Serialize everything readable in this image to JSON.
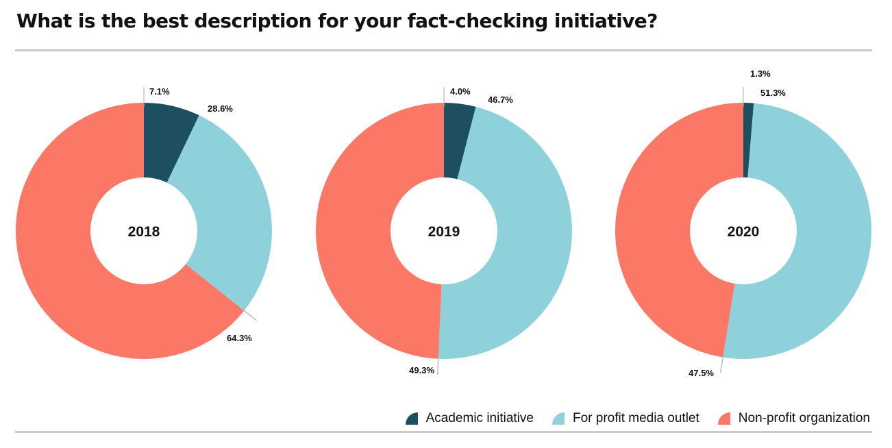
{
  "title": "What is the best description for your fact-checking initiative?",
  "colors": {
    "academic": "#1d4f60",
    "for_profit": "#8fd1db",
    "non_profit": "#fb7766"
  },
  "legend": [
    {
      "key": "academic",
      "label": "Academic initiative"
    },
    {
      "key": "for_profit",
      "label": "For profit media outlet"
    },
    {
      "key": "non_profit",
      "label": "Non-profit organization"
    }
  ],
  "chart_data": [
    {
      "type": "pie",
      "center_label": "2018",
      "slices": [
        {
          "key": "academic",
          "name": "Academic initiative",
          "value": 7.1,
          "label": "7.1%"
        },
        {
          "key": "for_profit",
          "name": "For profit media outlet",
          "value": 28.6,
          "label": "28.6%"
        },
        {
          "key": "non_profit",
          "name": "Non-profit organization",
          "value": 64.3,
          "label": "64.3%"
        }
      ]
    },
    {
      "type": "pie",
      "center_label": "2019",
      "slices": [
        {
          "key": "academic",
          "name": "Academic initiative",
          "value": 4.0,
          "label": "4.0%"
        },
        {
          "key": "for_profit",
          "name": "For profit media outlet",
          "value": 46.7,
          "label": "46.7%"
        },
        {
          "key": "non_profit",
          "name": "Non-profit organization",
          "value": 49.3,
          "label": "49.3%"
        }
      ]
    },
    {
      "type": "pie",
      "center_label": "2020",
      "slices": [
        {
          "key": "academic",
          "name": "Academic initiative",
          "value": 1.3,
          "label": "1.3%"
        },
        {
          "key": "for_profit",
          "name": "For profit media outlet",
          "value": 51.3,
          "label": "51.3%"
        },
        {
          "key": "non_profit",
          "name": "Non-profit organization",
          "value": 47.5,
          "label": "47.5%"
        }
      ]
    }
  ]
}
